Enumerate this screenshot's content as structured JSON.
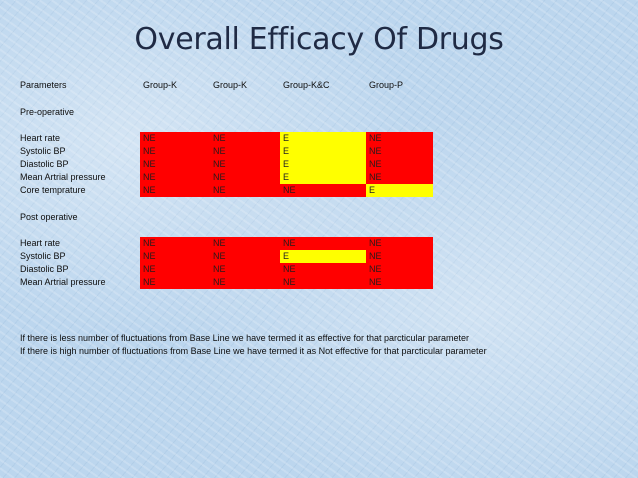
{
  "title": "Overall Efficacy Of Drugs",
  "header": {
    "parameters": "Parameters",
    "col1": "Group-K",
    "col2": "Group-K",
    "col3": "Group-K&C",
    "col4": "Group-P"
  },
  "sections": {
    "pre": "Pre-operative",
    "post": "Post operative"
  },
  "pre_rows": [
    {
      "label": "Heart rate",
      "c1": "NE",
      "c2": "NE",
      "c3": "E",
      "c4": "NE"
    },
    {
      "label": "Systolic BP",
      "c1": "NE",
      "c2": "NE",
      "c3": "E",
      "c4": "NE"
    },
    {
      "label": "Diastolic  BP",
      "c1": "NE",
      "c2": "NE",
      "c3": "E",
      "c4": "NE"
    },
    {
      "label": "Mean Artrial pressure",
      "c1": "NE",
      "c2": "NE",
      "c3": "E",
      "c4": "NE"
    },
    {
      "label": "Core temprature",
      "c1": "NE",
      "c2": "NE",
      "c3": "NE",
      "c4": "E"
    }
  ],
  "post_rows": [
    {
      "label": "Heart rate",
      "c1": "NE",
      "c2": "NE",
      "c3": "NE",
      "c4": "NE"
    },
    {
      "label": "Systolic BP",
      "c1": "NE",
      "c2": "NE",
      "c3": "E",
      "c4": "NE"
    },
    {
      "label": "Diastolic  BP",
      "c1": "NE",
      "c2": "NE",
      "c3": "NE",
      "c4": "NE"
    },
    {
      "label": "Mean Artrial pressure",
      "c1": "NE",
      "c2": "NE",
      "c3": "NE",
      "c4": "NE"
    }
  ],
  "notes": {
    "line1": "If there is less number of fluctuations from Base Line we have termed it as effective for that parcticular parameter",
    "line2": "If there is  high number of fluctuations from Base Line we have termed it as Not effective for that parcticular parameter"
  },
  "colors": {
    "effective": "#ffff00",
    "not_effective": "#ff0000"
  }
}
